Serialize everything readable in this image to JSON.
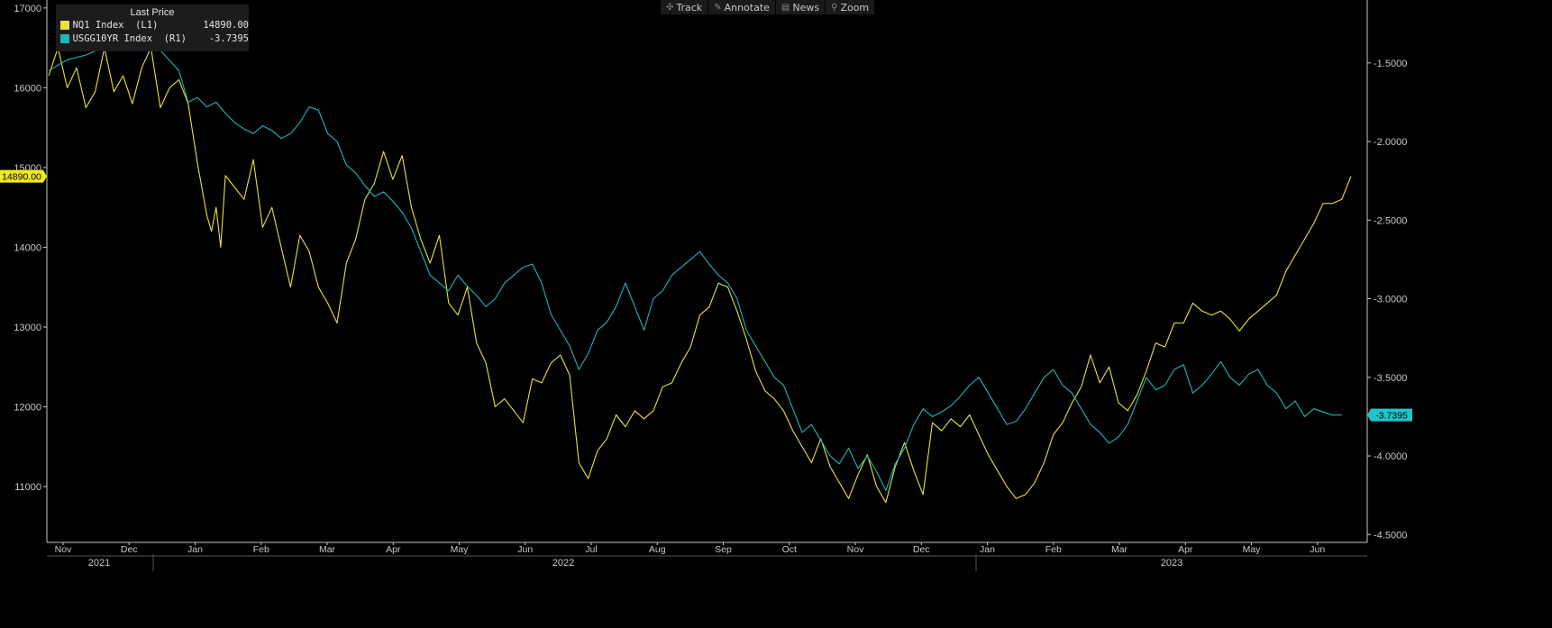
{
  "toolbar": {
    "items": [
      {
        "icon": "crosshair-icon",
        "label": "Track"
      },
      {
        "icon": "pencil-icon",
        "label": "Annotate"
      },
      {
        "icon": "news-icon",
        "label": "News"
      },
      {
        "icon": "magnifier-icon",
        "label": "Zoom"
      }
    ]
  },
  "legend": {
    "title": "Last Price",
    "rows": [
      {
        "name": "NQ1 Index  (L1)",
        "value": "14890.00",
        "color": "#e8e23a"
      },
      {
        "name": "USGG10YR Index  (R1)",
        "value": "-3.7395",
        "color": "#1fb5b8"
      }
    ]
  },
  "colors": {
    "background": "#000000",
    "axis": "#c9c9c9",
    "series1": "#e8e23a",
    "series2": "#1fb5b8",
    "label_bg_series1": "#f1e81f",
    "label_bg_series2": "#22c3c9"
  },
  "chart_data": {
    "type": "line",
    "grid": false,
    "legend_position": "top-left",
    "x_axis": {
      "month_labels": [
        "Nov",
        "Dec",
        "Jan",
        "Feb",
        "Mar",
        "Apr",
        "May",
        "Jun",
        "Jul",
        "Aug",
        "Sep",
        "Oct",
        "Nov",
        "Dec",
        "Jan",
        "Feb",
        "Mar",
        "Apr",
        "May",
        "Jun"
      ],
      "year_labels": [
        "2021",
        "2022",
        "2023"
      ],
      "range_months": [
        0,
        19.4
      ]
    },
    "left_axis": {
      "ticks": [
        "17000",
        "16000",
        "15000",
        "14000",
        "13000",
        "12000",
        "11000"
      ],
      "range": [
        10300,
        17100
      ],
      "last_label": "14890.00"
    },
    "right_axis": {
      "ticks": [
        "-1.5000",
        "-2.0000",
        "-2.5000",
        "-3.0000",
        "-3.5000",
        "-4.0000",
        "-4.5000"
      ],
      "range": [
        -4.55,
        -1.1
      ],
      "last_label": "-3.7395"
    },
    "series": [
      {
        "name": "NQ1 Index  (L1)",
        "axis": "left",
        "points": [
          [
            0,
            16150
          ],
          [
            0.2,
            16500
          ],
          [
            0.4,
            16000
          ],
          [
            0.6,
            16250
          ],
          [
            0.8,
            15750
          ],
          [
            1.0,
            15950
          ],
          [
            1.2,
            16500
          ],
          [
            1.4,
            15950
          ],
          [
            1.6,
            16150
          ],
          [
            1.8,
            15800
          ],
          [
            2.0,
            16250
          ],
          [
            2.2,
            16500
          ],
          [
            2.4,
            15750
          ],
          [
            2.6,
            16000
          ],
          [
            2.8,
            16100
          ],
          [
            3.0,
            15800
          ],
          [
            3.2,
            15050
          ],
          [
            3.4,
            14400
          ],
          [
            3.5,
            14200
          ],
          [
            3.6,
            14500
          ],
          [
            3.7,
            14000
          ],
          [
            3.8,
            14900
          ],
          [
            4.0,
            14750
          ],
          [
            4.2,
            14600
          ],
          [
            4.4,
            15100
          ],
          [
            4.6,
            14250
          ],
          [
            4.8,
            14500
          ],
          [
            5.0,
            14000
          ],
          [
            5.2,
            13500
          ],
          [
            5.4,
            14150
          ],
          [
            5.6,
            13950
          ],
          [
            5.8,
            13500
          ],
          [
            6.0,
            13300
          ],
          [
            6.2,
            13050
          ],
          [
            6.4,
            13800
          ],
          [
            6.6,
            14100
          ],
          [
            6.8,
            14600
          ],
          [
            7.0,
            14800
          ],
          [
            7.2,
            15200
          ],
          [
            7.4,
            14850
          ],
          [
            7.6,
            15150
          ],
          [
            7.8,
            14500
          ],
          [
            8.0,
            14100
          ],
          [
            8.2,
            13800
          ],
          [
            8.4,
            14150
          ],
          [
            8.6,
            13300
          ],
          [
            8.8,
            13150
          ],
          [
            9.0,
            13500
          ],
          [
            9.2,
            12800
          ],
          [
            9.4,
            12550
          ],
          [
            9.6,
            12000
          ],
          [
            9.8,
            12100
          ],
          [
            10.0,
            11950
          ],
          [
            10.2,
            11800
          ],
          [
            10.4,
            12350
          ],
          [
            10.6,
            12300
          ],
          [
            10.8,
            12550
          ],
          [
            11.0,
            12650
          ],
          [
            11.2,
            12400
          ],
          [
            11.4,
            11300
          ],
          [
            11.6,
            11100
          ],
          [
            11.8,
            11450
          ],
          [
            12.0,
            11600
          ],
          [
            12.2,
            11900
          ],
          [
            12.4,
            11750
          ],
          [
            12.6,
            11950
          ],
          [
            12.8,
            11850
          ],
          [
            13.0,
            11950
          ],
          [
            13.2,
            12250
          ],
          [
            13.4,
            12300
          ],
          [
            13.6,
            12550
          ],
          [
            13.8,
            12750
          ],
          [
            14.0,
            13150
          ],
          [
            14.2,
            13250
          ],
          [
            14.4,
            13550
          ],
          [
            14.6,
            13500
          ],
          [
            14.8,
            13200
          ],
          [
            15.0,
            12850
          ],
          [
            15.2,
            12450
          ],
          [
            15.4,
            12200
          ],
          [
            15.6,
            12100
          ],
          [
            15.8,
            11950
          ],
          [
            16.0,
            11700
          ],
          [
            16.2,
            11500
          ],
          [
            16.4,
            11300
          ],
          [
            16.6,
            11600
          ],
          [
            16.8,
            11250
          ],
          [
            17.0,
            11050
          ],
          [
            17.2,
            10850
          ],
          [
            17.4,
            11150
          ],
          [
            17.6,
            11400
          ],
          [
            17.8,
            11000
          ],
          [
            18.0,
            10800
          ],
          [
            18.2,
            11250
          ],
          [
            18.4,
            11550
          ],
          [
            18.6,
            11200
          ],
          [
            18.8,
            10900
          ],
          [
            19.0,
            11800
          ],
          [
            19.2,
            11700
          ],
          [
            19.4,
            11850
          ],
          [
            19.6,
            11750
          ],
          [
            19.8,
            11900
          ],
          [
            20.0,
            11650
          ],
          [
            20.2,
            11400
          ],
          [
            20.4,
            11200
          ],
          [
            20.6,
            11000
          ],
          [
            20.8,
            10850
          ],
          [
            21.0,
            10900
          ],
          [
            21.2,
            11050
          ],
          [
            21.4,
            11300
          ],
          [
            21.6,
            11650
          ],
          [
            21.8,
            11800
          ],
          [
            22.0,
            12050
          ],
          [
            22.2,
            12250
          ],
          [
            22.4,
            12650
          ],
          [
            22.6,
            12300
          ],
          [
            22.8,
            12500
          ],
          [
            23.0,
            12050
          ],
          [
            23.2,
            11950
          ],
          [
            23.4,
            12150
          ],
          [
            23.6,
            12450
          ],
          [
            23.8,
            12800
          ],
          [
            24.0,
            12750
          ],
          [
            24.2,
            13050
          ],
          [
            24.4,
            13050
          ],
          [
            24.6,
            13300
          ],
          [
            24.8,
            13200
          ],
          [
            25.0,
            13150
          ],
          [
            25.2,
            13200
          ],
          [
            25.4,
            13100
          ],
          [
            25.6,
            12950
          ],
          [
            25.8,
            13100
          ],
          [
            26.0,
            13200
          ],
          [
            26.2,
            13300
          ],
          [
            26.4,
            13400
          ],
          [
            26.6,
            13700
          ],
          [
            26.8,
            13900
          ],
          [
            27.0,
            14100
          ],
          [
            27.2,
            14300
          ],
          [
            27.4,
            14550
          ],
          [
            27.6,
            14550
          ],
          [
            27.8,
            14600
          ],
          [
            28.0,
            14890
          ]
        ]
      },
      {
        "name": "USGG10YR Index  (R1)",
        "axis": "right",
        "points": [
          [
            0,
            -1.55
          ],
          [
            0.4,
            -1.48
          ],
          [
            0.8,
            -1.45
          ],
          [
            1.2,
            -1.4
          ],
          [
            1.6,
            -1.38
          ],
          [
            2.0,
            -1.4
          ],
          [
            2.4,
            -1.42
          ],
          [
            2.8,
            -1.55
          ],
          [
            3.0,
            -1.75
          ],
          [
            3.2,
            -1.72
          ],
          [
            3.4,
            -1.78
          ],
          [
            3.6,
            -1.75
          ],
          [
            3.8,
            -1.82
          ],
          [
            4.0,
            -1.88
          ],
          [
            4.2,
            -1.92
          ],
          [
            4.4,
            -1.95
          ],
          [
            4.6,
            -1.9
          ],
          [
            4.8,
            -1.93
          ],
          [
            5.0,
            -1.98
          ],
          [
            5.2,
            -1.95
          ],
          [
            5.4,
            -1.88
          ],
          [
            5.6,
            -1.78
          ],
          [
            5.8,
            -1.8
          ],
          [
            6.0,
            -1.95
          ],
          [
            6.2,
            -2.0
          ],
          [
            6.4,
            -2.15
          ],
          [
            6.6,
            -2.2
          ],
          [
            6.8,
            -2.28
          ],
          [
            7.0,
            -2.35
          ],
          [
            7.2,
            -2.32
          ],
          [
            7.4,
            -2.38
          ],
          [
            7.6,
            -2.45
          ],
          [
            7.8,
            -2.55
          ],
          [
            8.0,
            -2.7
          ],
          [
            8.2,
            -2.85
          ],
          [
            8.4,
            -2.9
          ],
          [
            8.6,
            -2.95
          ],
          [
            8.8,
            -2.85
          ],
          [
            9.0,
            -2.92
          ],
          [
            9.2,
            -2.98
          ],
          [
            9.4,
            -3.05
          ],
          [
            9.6,
            -3.0
          ],
          [
            9.8,
            -2.9
          ],
          [
            10.0,
            -2.85
          ],
          [
            10.2,
            -2.8
          ],
          [
            10.4,
            -2.78
          ],
          [
            10.6,
            -2.9
          ],
          [
            10.8,
            -3.1
          ],
          [
            11.0,
            -3.2
          ],
          [
            11.2,
            -3.3
          ],
          [
            11.4,
            -3.45
          ],
          [
            11.6,
            -3.35
          ],
          [
            11.8,
            -3.2
          ],
          [
            12.0,
            -3.15
          ],
          [
            12.2,
            -3.05
          ],
          [
            12.4,
            -2.9
          ],
          [
            12.6,
            -3.05
          ],
          [
            12.8,
            -3.2
          ],
          [
            13.0,
            -3.0
          ],
          [
            13.2,
            -2.95
          ],
          [
            13.4,
            -2.85
          ],
          [
            13.6,
            -2.8
          ],
          [
            13.8,
            -2.75
          ],
          [
            14.0,
            -2.7
          ],
          [
            14.2,
            -2.78
          ],
          [
            14.4,
            -2.85
          ],
          [
            14.6,
            -2.9
          ],
          [
            14.8,
            -3.0
          ],
          [
            15.0,
            -3.2
          ],
          [
            15.2,
            -3.3
          ],
          [
            15.4,
            -3.4
          ],
          [
            15.6,
            -3.5
          ],
          [
            15.8,
            -3.55
          ],
          [
            16.0,
            -3.7
          ],
          [
            16.2,
            -3.85
          ],
          [
            16.4,
            -3.8
          ],
          [
            16.6,
            -3.9
          ],
          [
            16.8,
            -4.0
          ],
          [
            17.0,
            -4.05
          ],
          [
            17.2,
            -3.95
          ],
          [
            17.4,
            -4.08
          ],
          [
            17.6,
            -4.0
          ],
          [
            17.8,
            -4.1
          ],
          [
            18.0,
            -4.22
          ],
          [
            18.2,
            -4.05
          ],
          [
            18.4,
            -3.95
          ],
          [
            18.6,
            -3.8
          ],
          [
            18.8,
            -3.7
          ],
          [
            19.0,
            -3.75
          ],
          [
            19.2,
            -3.72
          ],
          [
            19.4,
            -3.68
          ],
          [
            19.6,
            -3.62
          ],
          [
            19.8,
            -3.55
          ],
          [
            20.0,
            -3.5
          ],
          [
            20.2,
            -3.6
          ],
          [
            20.4,
            -3.7
          ],
          [
            20.6,
            -3.8
          ],
          [
            20.8,
            -3.78
          ],
          [
            21.0,
            -3.7
          ],
          [
            21.2,
            -3.6
          ],
          [
            21.4,
            -3.5
          ],
          [
            21.6,
            -3.45
          ],
          [
            21.8,
            -3.55
          ],
          [
            22.0,
            -3.6
          ],
          [
            22.2,
            -3.7
          ],
          [
            22.4,
            -3.8
          ],
          [
            22.6,
            -3.85
          ],
          [
            22.8,
            -3.92
          ],
          [
            23.0,
            -3.88
          ],
          [
            23.2,
            -3.8
          ],
          [
            23.4,
            -3.65
          ],
          [
            23.6,
            -3.5
          ],
          [
            23.8,
            -3.58
          ],
          [
            24.0,
            -3.55
          ],
          [
            24.2,
            -3.45
          ],
          [
            24.4,
            -3.42
          ],
          [
            24.6,
            -3.6
          ],
          [
            24.8,
            -3.55
          ],
          [
            25.0,
            -3.48
          ],
          [
            25.2,
            -3.4
          ],
          [
            25.4,
            -3.5
          ],
          [
            25.6,
            -3.55
          ],
          [
            25.8,
            -3.48
          ],
          [
            26.0,
            -3.45
          ],
          [
            26.2,
            -3.55
          ],
          [
            26.4,
            -3.6
          ],
          [
            26.6,
            -3.7
          ],
          [
            26.8,
            -3.65
          ],
          [
            27.0,
            -3.75
          ],
          [
            27.2,
            -3.7
          ],
          [
            27.4,
            -3.72
          ],
          [
            27.6,
            -3.74
          ],
          [
            27.8,
            -3.7395
          ]
        ]
      }
    ]
  }
}
